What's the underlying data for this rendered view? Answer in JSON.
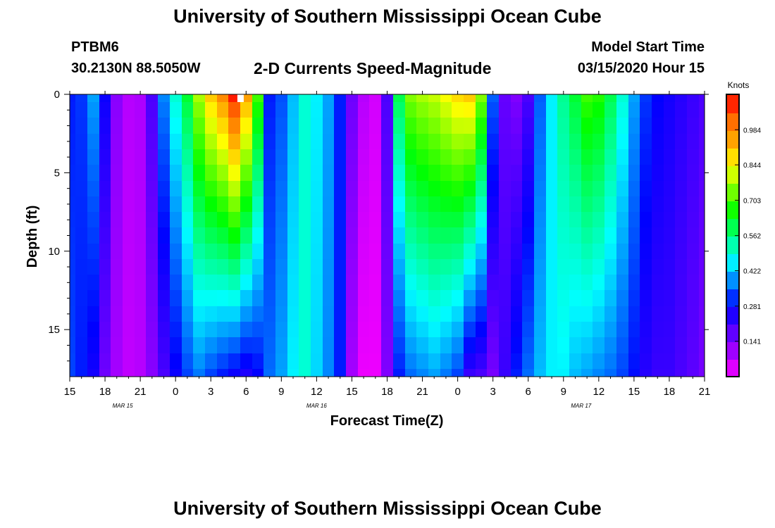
{
  "header": {
    "title": "University of Southern Mississippi Ocean Cube",
    "station": "PTBM6",
    "coords": "30.2130N 88.5050W",
    "subtitle": "2-D Currents Speed-Magnitude",
    "start_label": "Model Start Time",
    "start_value": "03/15/2020 Hour 15"
  },
  "footer": {
    "title": "University of Southern Mississippi Ocean Cube"
  },
  "colors": {
    "scale": [
      "#ff00ff",
      "#aa00ff",
      "#5500ff",
      "#0000ff",
      "#0080ff",
      "#00ffff",
      "#00ff80",
      "#00ff00",
      "#80ff00",
      "#ffff00",
      "#ffaa00",
      "#ff6600",
      "#ff0000"
    ],
    "missing": "#ffffff"
  },
  "chart_data": {
    "type": "heatmap",
    "xlabel": "Forecast Time(Z)",
    "ylabel": "Depth (ft)",
    "x_range_hours": [
      0,
      54
    ],
    "y_range_ft": [
      0,
      18
    ],
    "x_ticks": [
      "15",
      "18",
      "21",
      "0",
      "3",
      "6",
      "9",
      "12",
      "15",
      "18",
      "21",
      "0",
      "3",
      "6",
      "9",
      "12",
      "15",
      "18",
      "21"
    ],
    "day_labels": [
      {
        "label": "MAR 15",
        "hour": 4.5
      },
      {
        "label": "MAR 16",
        "hour": 21
      },
      {
        "label": "MAR 17",
        "hour": 43.5
      }
    ],
    "y_ticks": [
      0,
      5,
      10,
      15
    ],
    "colorbar": {
      "title": "Knots",
      "range": [
        0,
        1.125
      ],
      "ticks": [
        0.141,
        0.281,
        0.422,
        0.562,
        0.703,
        0.844,
        0.984
      ]
    },
    "depth_levels_ft": [
      0,
      1,
      2,
      3,
      4,
      5,
      6,
      7,
      8,
      9,
      10,
      11,
      12,
      13,
      14,
      15,
      16,
      17,
      18
    ],
    "profiles": [
      {
        "hour": 0,
        "surface": 0.3,
        "bottom": 0.33
      },
      {
        "hour": 1,
        "surface": 0.32,
        "bottom": 0.3
      },
      {
        "hour": 2,
        "surface": 0.4,
        "bottom": 0.26
      },
      {
        "hour": 3,
        "surface": 0.27,
        "bottom": 0.16
      },
      {
        "hour": 4,
        "surface": 0.13,
        "bottom": 0.1
      },
      {
        "hour": 5,
        "surface": 0.08,
        "bottom": 0.07
      },
      {
        "hour": 6,
        "surface": 0.09,
        "bottom": 0.08
      },
      {
        "hour": 7,
        "surface": 0.2,
        "bottom": 0.13
      },
      {
        "hour": 8,
        "surface": 0.38,
        "bottom": 0.2
      },
      {
        "hour": 9,
        "surface": 0.5,
        "bottom": 0.27
      },
      {
        "hour": 10,
        "surface": 0.62,
        "bottom": 0.33
      },
      {
        "hour": 11,
        "surface": 0.78,
        "bottom": 0.37
      },
      {
        "hour": 12,
        "surface": 0.9,
        "bottom": 0.33
      },
      {
        "hour": 13,
        "surface": 0.98,
        "bottom": 0.3
      },
      {
        "hour": 14,
        "surface": 1.1,
        "bottom": 0.27
      },
      {
        "hour": 15,
        "surface": 0.95,
        "bottom": 0.25
      },
      {
        "hour": 16,
        "surface": 0.7,
        "bottom": 0.28
      },
      {
        "hour": 17,
        "surface": 0.3,
        "bottom": 0.36
      },
      {
        "hour": 18,
        "surface": 0.34,
        "bottom": 0.4
      },
      {
        "hour": 19,
        "surface": 0.42,
        "bottom": 0.46
      },
      {
        "hour": 20,
        "surface": 0.5,
        "bottom": 0.5
      },
      {
        "hour": 21,
        "surface": 0.46,
        "bottom": 0.44
      },
      {
        "hour": 22,
        "surface": 0.4,
        "bottom": 0.38
      },
      {
        "hour": 23,
        "surface": 0.3,
        "bottom": 0.3
      },
      {
        "hour": 24,
        "surface": 0.16,
        "bottom": 0.1
      },
      {
        "hour": 25,
        "surface": 0.08,
        "bottom": 0.02
      },
      {
        "hour": 26,
        "surface": 0.05,
        "bottom": 0.02
      },
      {
        "hour": 27,
        "surface": 0.2,
        "bottom": 0.14
      },
      {
        "hour": 28,
        "surface": 0.6,
        "bottom": 0.3
      },
      {
        "hour": 29,
        "surface": 0.75,
        "bottom": 0.36
      },
      {
        "hour": 30,
        "surface": 0.78,
        "bottom": 0.38
      },
      {
        "hour": 31,
        "surface": 0.8,
        "bottom": 0.4
      },
      {
        "hour": 32,
        "surface": 0.84,
        "bottom": 0.37
      },
      {
        "hour": 33,
        "surface": 0.88,
        "bottom": 0.33
      },
      {
        "hour": 34,
        "surface": 0.9,
        "bottom": 0.22
      },
      {
        "hour": 35,
        "surface": 0.75,
        "bottom": 0.2
      },
      {
        "hour": 36,
        "surface": 0.35,
        "bottom": 0.15
      },
      {
        "hour": 37,
        "surface": 0.17,
        "bottom": 0.22
      },
      {
        "hour": 38,
        "surface": 0.14,
        "bottom": 0.3
      },
      {
        "hour": 39,
        "surface": 0.2,
        "bottom": 0.36
      },
      {
        "hour": 40,
        "surface": 0.35,
        "bottom": 0.42
      },
      {
        "hour": 41,
        "surface": 0.46,
        "bottom": 0.46
      },
      {
        "hour": 42,
        "surface": 0.55,
        "bottom": 0.46
      },
      {
        "hour": 43,
        "surface": 0.62,
        "bottom": 0.42
      },
      {
        "hour": 44,
        "surface": 0.7,
        "bottom": 0.4
      },
      {
        "hour": 45,
        "surface": 0.68,
        "bottom": 0.38
      },
      {
        "hour": 46,
        "surface": 0.6,
        "bottom": 0.36
      },
      {
        "hour": 47,
        "surface": 0.5,
        "bottom": 0.33
      },
      {
        "hour": 48,
        "surface": 0.4,
        "bottom": 0.29
      },
      {
        "hour": 49,
        "surface": 0.32,
        "bottom": 0.24
      },
      {
        "hour": 50,
        "surface": 0.28,
        "bottom": 0.22
      },
      {
        "hour": 51,
        "surface": 0.26,
        "bottom": 0.22
      },
      {
        "hour": 52,
        "surface": 0.24,
        "bottom": 0.2
      },
      {
        "hour": 53,
        "surface": 0.22,
        "bottom": 0.18
      },
      {
        "hour": 54,
        "surface": 0.2,
        "bottom": 0.15
      }
    ],
    "missing_cells": [
      {
        "hour": 14.5,
        "depth_ft": 0
      }
    ]
  }
}
